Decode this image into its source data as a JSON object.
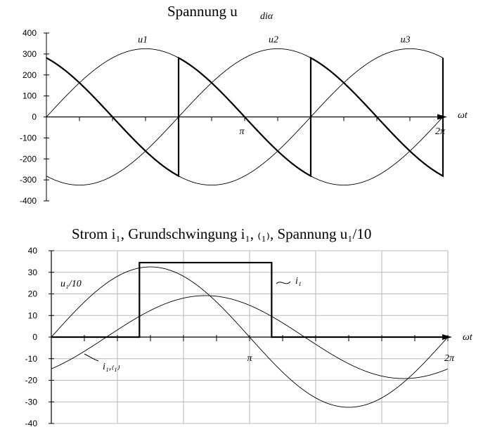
{
  "chart_data": [
    {
      "type": "line",
      "title": "Spannung  u",
      "title_sub": "diα",
      "xlabel": "ωt",
      "x_range": [
        0,
        6.2832
      ],
      "ylim": [
        -400,
        400
      ],
      "yticks": [
        400,
        300,
        200,
        100,
        0,
        -100,
        -200,
        -300,
        -400
      ],
      "x_marks": [
        {
          "label": "π",
          "x": 3.1416
        },
        {
          "label": "2π",
          "x": 6.2832
        }
      ],
      "grid": false,
      "series": [
        {
          "name": "u1",
          "kind": "sine",
          "amplitude": 325,
          "phase_deg": 0,
          "label_x": 1.45,
          "label_y": 355
        },
        {
          "name": "u2",
          "kind": "sine",
          "amplitude": 325,
          "phase_deg": -120,
          "label_x": 3.52,
          "label_y": 355
        },
        {
          "name": "u3",
          "kind": "sine",
          "amplitude": 325,
          "phase_deg": -240,
          "label_x": 5.61,
          "label_y": 355
        },
        {
          "name": "",
          "kind": "thyristor",
          "amplitude": 325,
          "firing_deg": 120,
          "bold": true
        }
      ]
    },
    {
      "type": "line",
      "title": "Strom i₁, Grundschwingung i₁, ₍₁₎, Spannung u₁/10",
      "xlabel": "ωt",
      "x_range": [
        0,
        6.2832
      ],
      "ylim": [
        -40,
        40
      ],
      "yticks": [
        40,
        30,
        20,
        10,
        0,
        -10,
        -20,
        -30,
        -40
      ],
      "x_marks": [
        {
          "label": "π",
          "x": 3.1416
        },
        {
          "label": "2π",
          "x": 6.2832
        }
      ],
      "grid": true,
      "series": [
        {
          "name": "u1/10",
          "kind": "sine",
          "amplitude": 32.5,
          "phase_deg": 0
        },
        {
          "name": "i1,(1)",
          "kind": "sine",
          "amplitude": 19.2,
          "phase_deg": -50
        },
        {
          "name": "i1",
          "kind": "square",
          "level": 34.5,
          "on_x": 1.396,
          "off_x": 3.491,
          "bold": true
        }
      ],
      "labels": {
        "u1_10": "u₁/10",
        "i1": "i₁",
        "i1_1": "i₁,₍₁₎"
      }
    }
  ]
}
